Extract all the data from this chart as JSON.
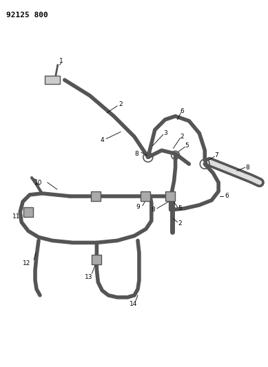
{
  "title": "92125 800",
  "bg_color": "#ffffff",
  "line_color": "#555555",
  "label_color": "#000000",
  "fig_w": 3.89,
  "fig_h": 5.33,
  "lw_tube": 4.0,
  "lw_label": 0.7,
  "label_fs": 6.5
}
